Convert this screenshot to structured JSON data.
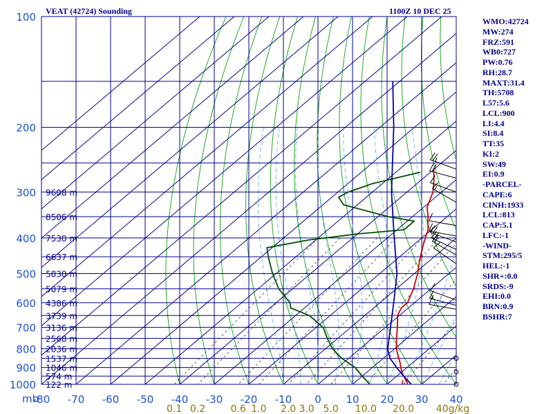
{
  "header": {
    "title": "VEAT (42724) Sounding",
    "datetime": "1100Z 10 DEC 25"
  },
  "indices": [
    "WMO:42724",
    "MW:274",
    "FRZ:591",
    "WB0:727",
    "PW:0.76",
    "RH:28.7",
    "MAXT:31.4",
    "TH:5708",
    "L57:5.6",
    "LCL:900",
    "LI:4.4",
    "SI:8.4",
    "TT:35",
    "KI:2",
    "SW:49",
    "EI:0.9",
    "-PARCEL-",
    "CAPE:6",
    "CINH:1933",
    "LCL:813",
    "CAP:5.1",
    "LFC:-1",
    "-WIND-",
    "STM:295/5",
    "HEL:-1",
    "SHR+:0.0",
    "SRDS:-9",
    "EHI:0.0",
    "BRN:0.9",
    "BSHR:7"
  ],
  "chart_data": {
    "type": "line",
    "title": "VEAT (42724) Sounding",
    "subtitle": "1100Z 10 DEC 25",
    "xlabel": "",
    "ylabel": "mb",
    "x_unit": "°C",
    "xlim": [
      -80,
      40
    ],
    "ylim": [
      1000,
      100
    ],
    "y_scale": "log",
    "grid": true,
    "pressure_ticks": [
      100,
      200,
      300,
      400,
      500,
      600,
      700,
      800,
      900,
      1000
    ],
    "grid_pressures": [
      100,
      150,
      200,
      250,
      300,
      350,
      400,
      450,
      500,
      550,
      600,
      650,
      700,
      750,
      800,
      850,
      900,
      950,
      1000
    ],
    "temperature_ticks": [
      "-80",
      "-70",
      "-60",
      "-50",
      "-40",
      "-30",
      "-20",
      "-10",
      "0",
      "10",
      "20",
      "30",
      "40"
    ],
    "mixing_ratio_ticks": [
      "0.1",
      "0.2",
      "0.6",
      "1.0",
      "2.0",
      "3.0",
      "5.0",
      "10.0",
      "20.0",
      "40g/kg"
    ],
    "height_labels": [
      {
        "p": 300,
        "label": "9608 m"
      },
      {
        "p": 350,
        "label": "8506 m"
      },
      {
        "p": 400,
        "label": "7530 m"
      },
      {
        "p": 450,
        "label": "6637 m"
      },
      {
        "p": 500,
        "label": "5830 m"
      },
      {
        "p": 550,
        "label": "5079 m"
      },
      {
        "p": 600,
        "label": "4386 m"
      },
      {
        "p": 650,
        "label": "3739 m"
      },
      {
        "p": 700,
        "label": "3136 m"
      },
      {
        "p": 750,
        "label": "2568 m"
      },
      {
        "p": 800,
        "label": "2036 m"
      },
      {
        "p": 850,
        "label": "1537 m"
      },
      {
        "p": 900,
        "label": "1046 m"
      },
      {
        "p": 950,
        "label": "574 m"
      },
      {
        "p": 1000,
        "label": "122 m"
      }
    ],
    "series": [
      {
        "name": "temperature",
        "color": "#cc0000",
        "points": [
          [
            1000,
            26.0
          ],
          [
            980,
            24.5
          ],
          [
            950,
            22.0
          ],
          [
            925,
            20.0
          ],
          [
            900,
            18.2
          ],
          [
            875,
            16.5
          ],
          [
            850,
            14.5
          ],
          [
            800,
            10.5
          ],
          [
            750,
            7.0
          ],
          [
            700,
            3.5
          ],
          [
            650,
            -0.5
          ],
          [
            620,
            -2.0
          ],
          [
            600,
            -2.0
          ],
          [
            575,
            -3.5
          ],
          [
            550,
            -5.0
          ],
          [
            525,
            -7.0
          ],
          [
            500,
            -9.0
          ],
          [
            475,
            -11.5
          ],
          [
            450,
            -14.0
          ],
          [
            425,
            -16.5
          ],
          [
            400,
            -19.0
          ],
          [
            380,
            -21.0
          ],
          [
            360,
            -24.0
          ],
          [
            350,
            -25.5
          ],
          [
            330,
            -29.0
          ],
          [
            300,
            -32.5
          ],
          [
            280,
            -36.0
          ],
          [
            258,
            -40.5
          ]
        ]
      },
      {
        "name": "dewpoint",
        "color": "#004d00",
        "points": [
          [
            1000,
            15.0
          ],
          [
            950,
            10.0
          ],
          [
            900,
            5.0
          ],
          [
            850,
            -2.0
          ],
          [
            800,
            -8.0
          ],
          [
            750,
            -13.0
          ],
          [
            700,
            -18.0
          ],
          [
            650,
            -26.0
          ],
          [
            620,
            -34.0
          ],
          [
            600,
            -36.0
          ],
          [
            550,
            -44.0
          ],
          [
            500,
            -51.0
          ],
          [
            450,
            -58.0
          ],
          [
            425,
            -61.5
          ],
          [
            405,
            -52.0
          ],
          [
            390,
            -40.0
          ],
          [
            380,
            -28.0
          ],
          [
            360,
            -28.0
          ],
          [
            350,
            -37.0
          ],
          [
            325,
            -54.0
          ],
          [
            310,
            -58.0
          ],
          [
            300,
            -57.0
          ],
          [
            285,
            -53.0
          ],
          [
            265,
            -43.0
          ]
        ]
      },
      {
        "name": "parcel",
        "color": "#0000aa",
        "points": [
          [
            1000,
            27.0
          ],
          [
            950,
            22.0
          ],
          [
            900,
            17.0
          ],
          [
            850,
            12.0
          ],
          [
            813,
            9.0
          ],
          [
            800,
            8.0
          ],
          [
            700,
            1.5
          ],
          [
            600,
            -6.0
          ],
          [
            500,
            -15.0
          ],
          [
            400,
            -28.0
          ],
          [
            300,
            -44.5
          ],
          [
            200,
            -66.0
          ],
          [
            150,
            -82.0
          ]
        ]
      }
    ],
    "wind_barbs": [
      {
        "p": 260,
        "dir": 290,
        "kt": 25
      },
      {
        "p": 275,
        "dir": 285,
        "kt": 20
      },
      {
        "p": 300,
        "dir": 290,
        "kt": 10
      },
      {
        "p": 320,
        "dir": 300,
        "kt": 15
      },
      {
        "p": 370,
        "dir": 280,
        "kt": 10
      },
      {
        "p": 395,
        "dir": 280,
        "kt": 15
      },
      {
        "p": 410,
        "dir": 290,
        "kt": 20
      },
      {
        "p": 430,
        "dir": 295,
        "kt": 25
      },
      {
        "p": 445,
        "dir": 300,
        "kt": 15
      },
      {
        "p": 470,
        "dir": 305,
        "kt": 10
      },
      {
        "p": 590,
        "dir": 290,
        "kt": 10
      },
      {
        "p": 610,
        "dir": 285,
        "kt": 15
      },
      {
        "p": 625,
        "dir": 280,
        "kt": 10
      },
      {
        "p": 850,
        "dir": 0,
        "kt": 0
      },
      {
        "p": 925,
        "dir": 0,
        "kt": 0
      },
      {
        "p": 1000,
        "dir": 0,
        "kt": 0
      }
    ]
  }
}
